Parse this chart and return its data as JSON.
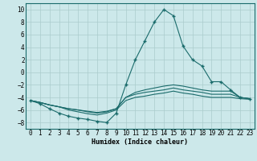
{
  "xlabel": "Humidex (Indice chaleur)",
  "background_color": "#cce8ea",
  "grid_color": "#aacccc",
  "line_color": "#1a6b6b",
  "xlim": [
    -0.5,
    23.5
  ],
  "ylim": [
    -9,
    11
  ],
  "xticks": [
    0,
    1,
    2,
    3,
    4,
    5,
    6,
    7,
    8,
    9,
    10,
    11,
    12,
    13,
    14,
    15,
    16,
    17,
    18,
    19,
    20,
    21,
    22,
    23
  ],
  "yticks": [
    -8,
    -6,
    -4,
    -2,
    0,
    2,
    4,
    6,
    8,
    10
  ],
  "line1_x": [
    0,
    1,
    2,
    3,
    4,
    5,
    6,
    7,
    8,
    9,
    10,
    11,
    12,
    13,
    14,
    15,
    16,
    17,
    18,
    19,
    20,
    21,
    22,
    23
  ],
  "line1_y": [
    -4.5,
    -5.0,
    -5.8,
    -6.5,
    -7.0,
    -7.3,
    -7.5,
    -7.8,
    -8.0,
    -6.5,
    -2.0,
    2.0,
    5.0,
    8.0,
    10.0,
    9.0,
    4.2,
    2.0,
    1.0,
    -1.5,
    -1.5,
    -2.8,
    -4.0,
    -4.2
  ],
  "line2_x": [
    0,
    1,
    2,
    3,
    4,
    5,
    6,
    7,
    8,
    9,
    10,
    11,
    12,
    13,
    14,
    15,
    16,
    17,
    18,
    19,
    20,
    21,
    22,
    23
  ],
  "line2_y": [
    -4.5,
    -4.8,
    -5.2,
    -5.5,
    -5.8,
    -6.0,
    -6.2,
    -6.4,
    -6.2,
    -5.8,
    -4.0,
    -3.2,
    -2.8,
    -2.5,
    -2.2,
    -2.0,
    -2.2,
    -2.5,
    -2.8,
    -3.0,
    -3.0,
    -3.0,
    -4.0,
    -4.2
  ],
  "line3_x": [
    0,
    1,
    2,
    3,
    4,
    5,
    6,
    7,
    8,
    9,
    10,
    11,
    12,
    13,
    14,
    15,
    16,
    17,
    18,
    19,
    20,
    21,
    22,
    23
  ],
  "line3_y": [
    -4.5,
    -4.8,
    -5.2,
    -5.5,
    -5.8,
    -6.0,
    -6.3,
    -6.5,
    -6.3,
    -5.8,
    -4.0,
    -3.5,
    -3.2,
    -3.0,
    -2.8,
    -2.5,
    -2.8,
    -3.0,
    -3.2,
    -3.5,
    -3.5,
    -3.5,
    -4.0,
    -4.2
  ],
  "line4_x": [
    0,
    1,
    2,
    3,
    4,
    5,
    6,
    7,
    8,
    9,
    10,
    11,
    12,
    13,
    14,
    15,
    16,
    17,
    18,
    19,
    20,
    21,
    22,
    23
  ],
  "line4_y": [
    -4.5,
    -4.8,
    -5.2,
    -5.5,
    -6.0,
    -6.3,
    -6.6,
    -6.8,
    -6.5,
    -6.0,
    -4.5,
    -4.0,
    -3.8,
    -3.5,
    -3.3,
    -3.0,
    -3.3,
    -3.5,
    -3.8,
    -4.0,
    -4.0,
    -4.0,
    -4.2,
    -4.3
  ]
}
